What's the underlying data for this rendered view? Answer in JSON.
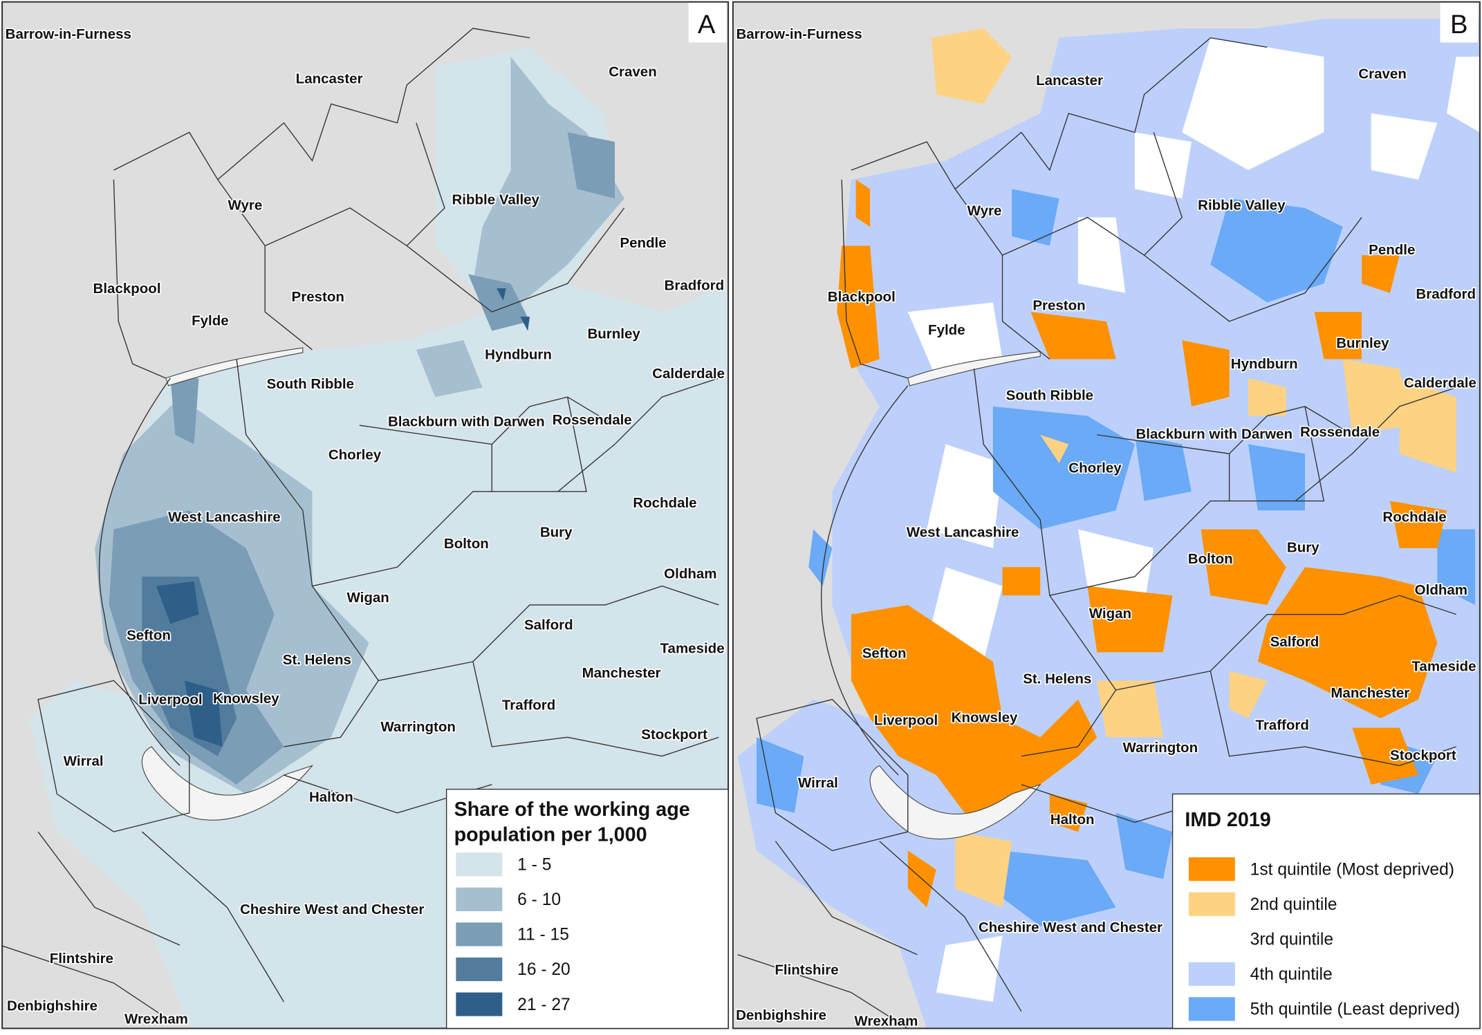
{
  "panels": [
    {
      "letter": "A",
      "places": [
        "Barrow-in-Furness",
        "Lancaster",
        "Craven",
        "Wyre",
        "Ribble Valley",
        "Pendle",
        "Bradford",
        "Blackpool",
        "Preston",
        "Fylde",
        "Burnley",
        "Hyndburn",
        "Calderdale",
        "South Ribble",
        "Blackburn with Darwen",
        "Rossendale",
        "Chorley",
        "Rochdale",
        "West Lancashire",
        "Bolton",
        "Bury",
        "Oldham",
        "Wigan",
        "Salford",
        "Sefton",
        "St. Helens",
        "Tameside",
        "Manchester",
        "Liverpool",
        "Knowsley",
        "Trafford",
        "Warrington",
        "Stockport",
        "Wirral",
        "Halton",
        "Cheshire West and Chester",
        "Flintshire",
        "Denbighshire",
        "Wrexham"
      ],
      "legend": {
        "title_line1": "Share of the working age",
        "title_line2": "population  per 1,000",
        "items": [
          {
            "label": "1 - 5",
            "color": "#d3e4ea"
          },
          {
            "label": "6 - 10",
            "color": "#a6bfd0"
          },
          {
            "label": "11 - 15",
            "color": "#7b9db6"
          },
          {
            "label": "16 - 20",
            "color": "#527c9d"
          },
          {
            "label": "21 - 27",
            "color": "#2d5f88"
          }
        ]
      }
    },
    {
      "letter": "B",
      "places": [
        "Barrow-in-Furness",
        "Lancaster",
        "Craven",
        "Wyre",
        "Ribble Valley",
        "Pendle",
        "Bradford",
        "Blackpool",
        "Preston",
        "Fylde",
        "Burnley",
        "Hyndburn",
        "Calderdale",
        "South Ribble",
        "Blackburn with Darwen",
        "Rossendale",
        "Chorley",
        "Rochdale",
        "West Lancashire",
        "Bury",
        "Bolton",
        "Oldham",
        "Wigan",
        "Salford",
        "Sefton",
        "Tameside",
        "St. Helens",
        "Manchester",
        "Liverpool",
        "Knowsley",
        "Trafford",
        "Warrington",
        "Stockport",
        "Wirral",
        "Halton",
        "Cheshire West and Chester",
        "Flintshire",
        "Denbighshire",
        "Wrexham"
      ],
      "legend": {
        "title": "IMD 2019",
        "items": [
          {
            "label": "1st quintile (Most deprived)",
            "color": "#ff9100"
          },
          {
            "label": "2nd quintile",
            "color": "#fdd283"
          },
          {
            "label": "3rd quintile",
            "color": "#ffffff"
          },
          {
            "label": "4th quintile",
            "color": "#bdd0fb"
          },
          {
            "label": "5th quintile (Least deprived)",
            "color": "#6aaaf7"
          }
        ]
      }
    }
  ]
}
